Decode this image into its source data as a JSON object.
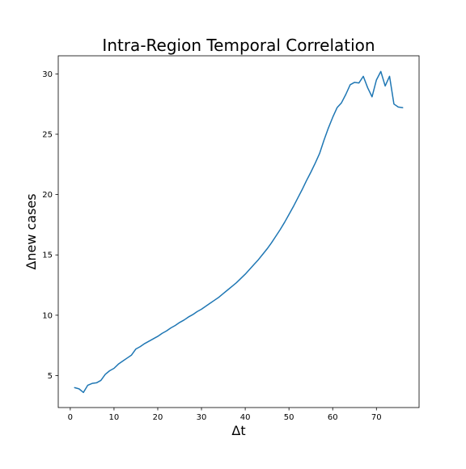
{
  "chart_data": {
    "type": "line",
    "title": "Intra-Region Temporal Correlation",
    "xlabel": "Δt",
    "ylabel": "Δnew cases",
    "xlim": [
      -2.75,
      79.75
    ],
    "ylim": [
      2.35,
      31.5
    ],
    "xticks": [
      0,
      10,
      20,
      30,
      40,
      50,
      60,
      70
    ],
    "yticks": [
      5,
      10,
      15,
      20,
      25,
      30
    ],
    "grid": false,
    "legend": "none",
    "series": [
      {
        "color": "#1f77b4",
        "x": [
          1,
          2,
          3,
          4,
          5,
          6,
          7,
          8,
          9,
          10,
          11,
          12,
          13,
          14,
          15,
          16,
          17,
          18,
          19,
          20,
          21,
          22,
          23,
          24,
          25,
          26,
          27,
          28,
          29,
          30,
          31,
          32,
          33,
          34,
          35,
          36,
          37,
          38,
          39,
          40,
          41,
          42,
          43,
          44,
          45,
          46,
          47,
          48,
          49,
          50,
          51,
          52,
          53,
          54,
          55,
          56,
          57,
          58,
          59,
          60,
          61,
          62,
          63,
          64,
          65,
          66,
          67,
          68,
          69,
          70,
          71,
          72,
          73,
          74,
          75,
          76
        ],
        "y": [
          4.0,
          3.9,
          3.6,
          4.2,
          4.35,
          4.4,
          4.6,
          5.1,
          5.4,
          5.6,
          5.95,
          6.2,
          6.45,
          6.7,
          7.2,
          7.4,
          7.65,
          7.85,
          8.05,
          8.25,
          8.5,
          8.7,
          8.95,
          9.15,
          9.4,
          9.6,
          9.85,
          10.05,
          10.3,
          10.5,
          10.75,
          11.0,
          11.25,
          11.5,
          11.8,
          12.1,
          12.4,
          12.7,
          13.05,
          13.4,
          13.8,
          14.2,
          14.6,
          15.05,
          15.5,
          16.0,
          16.55,
          17.1,
          17.7,
          18.35,
          19.0,
          19.7,
          20.4,
          21.15,
          21.85,
          22.6,
          23.4,
          24.5,
          25.5,
          26.4,
          27.2,
          27.6,
          28.3,
          29.1,
          29.3,
          29.25,
          29.8,
          28.85,
          28.1,
          29.5,
          30.2,
          29.0,
          29.8,
          27.5,
          27.25,
          27.2
        ]
      }
    ]
  }
}
